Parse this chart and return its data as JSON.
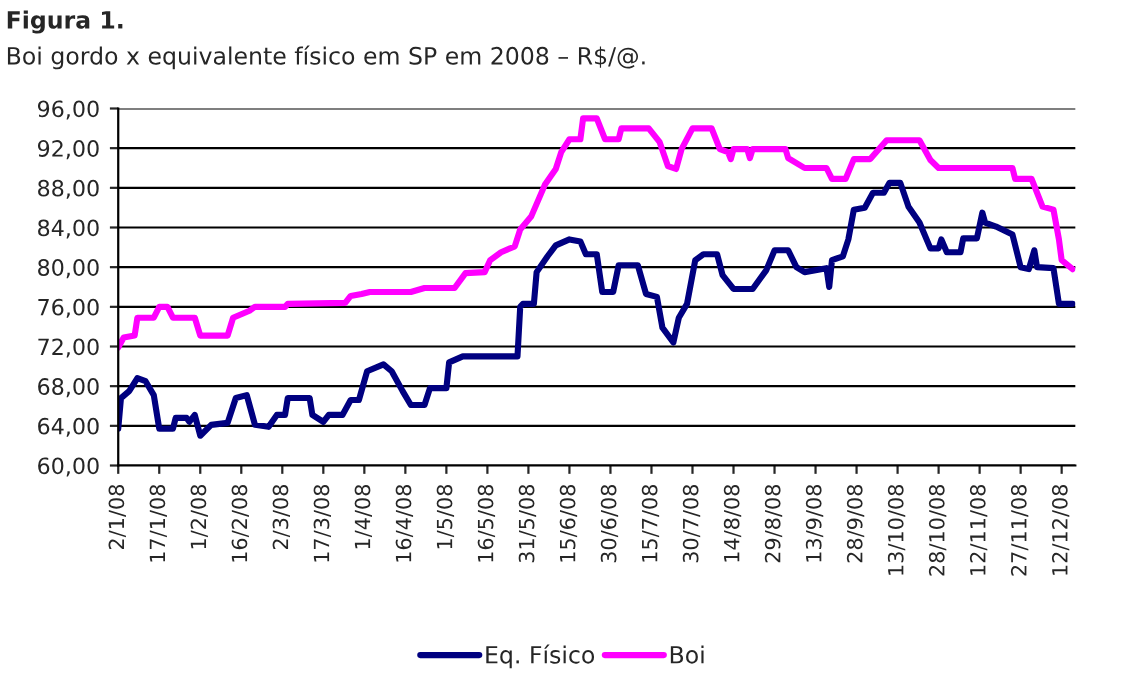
{
  "chart_data": {
    "type": "line",
    "title": "Figura 1.",
    "subtitle": "Boi gordo x equivalente físico em SP em 2008 – R$/@.",
    "ylim": [
      60,
      96
    ],
    "yticks": [
      {
        "value": 60,
        "label": "60,00"
      },
      {
        "value": 64,
        "label": "64,00"
      },
      {
        "value": 68,
        "label": "68,00"
      },
      {
        "value": 72,
        "label": "72,00"
      },
      {
        "value": 76,
        "label": "76,00"
      },
      {
        "value": 80,
        "label": "80,00"
      },
      {
        "value": 84,
        "label": "84,00"
      },
      {
        "value": 88,
        "label": "88,00"
      },
      {
        "value": 92,
        "label": "92,00"
      },
      {
        "value": 96,
        "label": "96,00"
      }
    ],
    "xlim": [
      "2008-01-02",
      "2008-12-17"
    ],
    "xticks": [
      {
        "value": "2008-01-02",
        "label": "2/1/08"
      },
      {
        "value": "2008-01-17",
        "label": "17/1/08"
      },
      {
        "value": "2008-02-01",
        "label": "1/2/08"
      },
      {
        "value": "2008-02-16",
        "label": "16/2/08"
      },
      {
        "value": "2008-03-02",
        "label": "2/3/08"
      },
      {
        "value": "2008-03-17",
        "label": "17/3/08"
      },
      {
        "value": "2008-04-01",
        "label": "1/4/08"
      },
      {
        "value": "2008-04-16",
        "label": "16/4/08"
      },
      {
        "value": "2008-05-01",
        "label": "1/5/08"
      },
      {
        "value": "2008-05-16",
        "label": "16/5/08"
      },
      {
        "value": "2008-05-31",
        "label": "31/5/08"
      },
      {
        "value": "2008-06-15",
        "label": "15/6/08"
      },
      {
        "value": "2008-06-30",
        "label": "30/6/08"
      },
      {
        "value": "2008-07-15",
        "label": "15/7/08"
      },
      {
        "value": "2008-07-30",
        "label": "30/7/08"
      },
      {
        "value": "2008-08-14",
        "label": "14/8/08"
      },
      {
        "value": "2008-08-29",
        "label": "29/8/08"
      },
      {
        "value": "2008-09-13",
        "label": "13/9/08"
      },
      {
        "value": "2008-09-28",
        "label": "28/9/08"
      },
      {
        "value": "2008-10-13",
        "label": "13/10/08"
      },
      {
        "value": "2008-10-28",
        "label": "28/10/08"
      },
      {
        "value": "2008-11-12",
        "label": "12/11/08"
      },
      {
        "value": "2008-11-27",
        "label": "27/11/08"
      },
      {
        "value": "2008-12-12",
        "label": "12/12/08"
      }
    ],
    "grid": "y",
    "legend": "bottom",
    "series": [
      {
        "name": "Eq. Físico",
        "color": "#000080",
        "x": [
          "2008-01-02",
          "2008-01-03",
          "2008-01-06",
          "2008-01-09",
          "2008-01-12",
          "2008-01-15",
          "2008-01-17",
          "2008-01-22",
          "2008-01-23",
          "2008-01-27",
          "2008-01-28",
          "2008-01-30",
          "2008-02-01",
          "2008-02-05",
          "2008-02-11",
          "2008-02-14",
          "2008-02-18",
          "2008-02-21",
          "2008-02-26",
          "2008-02-29",
          "2008-03-03",
          "2008-03-04",
          "2008-03-12",
          "2008-03-13",
          "2008-03-17",
          "2008-03-19",
          "2008-03-24",
          "2008-03-27",
          "2008-03-30",
          "2008-04-02",
          "2008-04-08",
          "2008-04-11",
          "2008-04-15",
          "2008-04-18",
          "2008-04-23",
          "2008-04-25",
          "2008-05-01",
          "2008-05-02",
          "2008-05-07",
          "2008-05-27",
          "2008-05-28",
          "2008-05-29",
          "2008-06-02",
          "2008-06-03",
          "2008-06-07",
          "2008-06-10",
          "2008-06-15",
          "2008-06-19",
          "2008-06-21",
          "2008-06-25",
          "2008-06-27",
          "2008-07-01",
          "2008-07-03",
          "2008-07-10",
          "2008-07-13",
          "2008-07-17",
          "2008-07-19",
          "2008-07-23",
          "2008-07-25",
          "2008-07-28",
          "2008-07-31",
          "2008-08-03",
          "2008-08-08",
          "2008-08-10",
          "2008-08-14",
          "2008-08-21",
          "2008-08-26",
          "2008-08-29",
          "2008-09-03",
          "2008-09-06",
          "2008-09-09",
          "2008-09-17",
          "2008-09-18",
          "2008-09-19",
          "2008-09-23",
          "2008-09-25",
          "2008-09-27",
          "2008-10-01",
          "2008-10-04",
          "2008-10-08",
          "2008-10-10",
          "2008-10-14",
          "2008-10-17",
          "2008-10-21",
          "2008-10-25",
          "2008-10-28",
          "2008-10-29",
          "2008-10-31",
          "2008-11-05",
          "2008-11-06",
          "2008-11-11",
          "2008-11-13",
          "2008-11-14",
          "2008-11-18",
          "2008-11-24",
          "2008-11-27",
          "2008-11-30",
          "2008-12-02",
          "2008-12-03",
          "2008-12-09",
          "2008-12-11",
          "2008-12-16"
        ],
        "values": [
          63.7,
          66.8,
          67.5,
          68.8,
          68.5,
          67.1,
          63.7,
          63.7,
          64.8,
          64.8,
          64.4,
          65.1,
          63.0,
          64.1,
          64.3,
          66.8,
          67.1,
          64.1,
          63.9,
          65.1,
          65.1,
          66.8,
          66.8,
          65.1,
          64.4,
          65.1,
          65.1,
          66.6,
          66.6,
          69.5,
          70.2,
          69.5,
          67.5,
          66.1,
          66.1,
          67.8,
          67.8,
          70.4,
          71.0,
          71.0,
          76.0,
          76.3,
          76.3,
          79.5,
          81.1,
          82.2,
          82.8,
          82.6,
          81.3,
          81.3,
          77.5,
          77.5,
          80.2,
          80.2,
          77.3,
          77.0,
          73.9,
          72.4,
          74.9,
          76.3,
          80.7,
          81.3,
          81.3,
          79.2,
          77.8,
          77.8,
          79.7,
          81.7,
          81.7,
          80.0,
          79.5,
          79.9,
          78.0,
          80.7,
          81.1,
          82.8,
          85.8,
          86.0,
          87.5,
          87.5,
          88.5,
          88.5,
          86.1,
          84.5,
          81.9,
          81.9,
          82.8,
          81.5,
          81.5,
          82.9,
          82.9,
          85.5,
          84.5,
          84.1,
          83.3,
          80.0,
          79.8,
          81.7,
          80.0,
          79.9,
          76.3,
          76.3
        ]
      },
      {
        "name": "Boi",
        "color": "#ff00ff",
        "x": [
          "2008-01-02",
          "2008-01-04",
          "2008-01-08",
          "2008-01-09",
          "2008-01-15",
          "2008-01-17",
          "2008-01-20",
          "2008-01-22",
          "2008-01-30",
          "2008-02-01",
          "2008-02-11",
          "2008-02-13",
          "2008-02-19",
          "2008-02-21",
          "2008-03-03",
          "2008-03-04",
          "2008-03-25",
          "2008-03-27",
          "2008-03-31",
          "2008-04-03",
          "2008-04-18",
          "2008-04-23",
          "2008-05-04",
          "2008-05-08",
          "2008-05-15",
          "2008-05-17",
          "2008-05-21",
          "2008-05-26",
          "2008-05-28",
          "2008-06-01",
          "2008-06-06",
          "2008-06-10",
          "2008-06-12",
          "2008-06-15",
          "2008-06-19",
          "2008-06-20",
          "2008-06-25",
          "2008-06-28",
          "2008-07-03",
          "2008-07-04",
          "2008-07-14",
          "2008-07-18",
          "2008-07-21",
          "2008-07-24",
          "2008-07-26",
          "2008-07-30",
          "2008-08-06",
          "2008-08-09",
          "2008-08-12",
          "2008-08-13",
          "2008-08-14",
          "2008-08-19",
          "2008-08-20",
          "2008-08-21",
          "2008-09-02",
          "2008-09-03",
          "2008-09-09",
          "2008-09-17",
          "2008-09-19",
          "2008-09-24",
          "2008-09-27",
          "2008-10-03",
          "2008-10-09",
          "2008-10-21",
          "2008-10-25",
          "2008-10-28",
          "2008-11-24",
          "2008-11-25",
          "2008-12-01",
          "2008-12-05",
          "2008-12-09",
          "2008-12-11",
          "2008-12-12",
          "2008-12-16"
        ],
        "values": [
          71.9,
          72.9,
          73.1,
          74.9,
          74.9,
          76.0,
          76.0,
          74.9,
          74.9,
          73.1,
          73.1,
          74.9,
          75.6,
          76.0,
          76.0,
          76.3,
          76.4,
          77.1,
          77.3,
          77.5,
          77.5,
          77.9,
          77.9,
          79.4,
          79.5,
          80.7,
          81.5,
          82.1,
          83.8,
          85.1,
          88.3,
          89.9,
          91.6,
          92.9,
          92.9,
          95.0,
          95.0,
          92.9,
          92.9,
          94.0,
          94.0,
          92.6,
          90.2,
          89.9,
          91.9,
          94.0,
          94.0,
          91.9,
          91.6,
          90.9,
          91.9,
          91.9,
          91.0,
          91.9,
          91.9,
          91.0,
          90.0,
          90.0,
          88.9,
          88.9,
          90.9,
          90.9,
          92.8,
          92.8,
          90.8,
          90.0,
          90.0,
          88.9,
          88.9,
          86.1,
          85.8,
          82.8,
          80.7,
          79.8
        ]
      }
    ]
  }
}
